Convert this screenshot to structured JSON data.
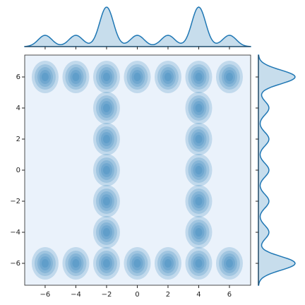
{
  "chart_data": {
    "type": "kde",
    "x": [
      -6,
      -4,
      -2,
      0,
      2,
      4,
      6,
      -6,
      -4,
      -2,
      0,
      2,
      4,
      6,
      -2,
      -2,
      -2,
      -2,
      -2,
      4,
      4,
      4,
      4,
      4
    ],
    "y": [
      6,
      6,
      6,
      6,
      6,
      6,
      6,
      -6,
      -6,
      -6,
      -6,
      -6,
      -6,
      -6,
      -4,
      -2,
      0,
      2,
      4,
      -4,
      -2,
      0,
      2,
      4
    ],
    "color": "#1f77b4",
    "xlim": [
      -7.33,
      7.38
    ],
    "ylim": [
      -7.41,
      7.41
    ],
    "xticks": [
      {
        "value": -6,
        "label": "−6"
      },
      {
        "value": -4,
        "label": "−4"
      },
      {
        "value": -2,
        "label": "−2"
      },
      0,
      2,
      4,
      6
    ],
    "yticks": [
      {
        "value": -6,
        "label": "−6"
      },
      {
        "value": -4,
        "label": "−4"
      },
      {
        "value": -2,
        "label": "−2"
      },
      0,
      2,
      4,
      6
    ]
  }
}
